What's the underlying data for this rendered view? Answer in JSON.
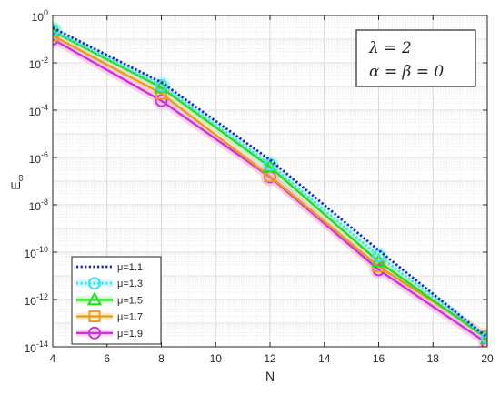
{
  "chart_data": {
    "type": "line",
    "xlabel": "N",
    "ylabel": "E",
    "ylabel_sub": "∞",
    "xlim": [
      4,
      20
    ],
    "ylim_log10": [
      -14,
      0
    ],
    "y_scale": "log",
    "grid": true,
    "minor_grid": true,
    "x_ticks": [
      "4",
      "6",
      "8",
      "10",
      "12",
      "14",
      "16",
      "18",
      "20"
    ],
    "y_ticks": [
      {
        "base": "10",
        "exp": "0"
      },
      {
        "base": "10",
        "exp": "-2"
      },
      {
        "base": "10",
        "exp": "-4"
      },
      {
        "base": "10",
        "exp": "-6"
      },
      {
        "base": "10",
        "exp": "-8"
      },
      {
        "base": "10",
        "exp": "-10"
      },
      {
        "base": "10",
        "exp": "-12"
      },
      {
        "base": "10",
        "exp": "-14"
      }
    ],
    "annotation": {
      "line1": "λ = 2",
      "line2": "α = β = 0"
    },
    "legend_position": "bottom-left",
    "x": [
      4,
      8,
      12,
      16,
      20
    ],
    "series": [
      {
        "name": "μ=1.1",
        "color": "#1a23c8",
        "dash": "dotted",
        "marker": "none",
        "glow": "none",
        "y": [
          0.3,
          0.0015,
          8e-07,
          1.2e-10,
          2.5e-14
        ]
      },
      {
        "name": "μ=1.3",
        "color": "#40e0f0",
        "dash": "dotted",
        "marker": "circle",
        "glow": "#a8f0f8",
        "y": [
          0.23,
          0.0011,
          5e-07,
          7e-11,
          2.5e-14
        ]
      },
      {
        "name": "μ=1.5",
        "color": "#22dd22",
        "dash": "solid",
        "marker": "triangle",
        "glow": "#a8f0a8",
        "y": [
          0.22,
          0.0009,
          4e-07,
          4e-11,
          2.2e-14
        ]
      },
      {
        "name": "μ=1.7",
        "color": "#e89a22",
        "dash": "solid",
        "marker": "square",
        "glow": "#f8d8a8",
        "y": [
          0.14,
          0.0005,
          1.6e-07,
          2.5e-11,
          2.8e-14
        ]
      },
      {
        "name": "μ=1.9",
        "color": "#cc33dd",
        "dash": "solid",
        "marker": "circle",
        "glow": "#f8b0e0",
        "y": [
          0.1,
          0.00025,
          1.5e-07,
          1.8e-11,
          1.4e-14
        ]
      }
    ]
  }
}
